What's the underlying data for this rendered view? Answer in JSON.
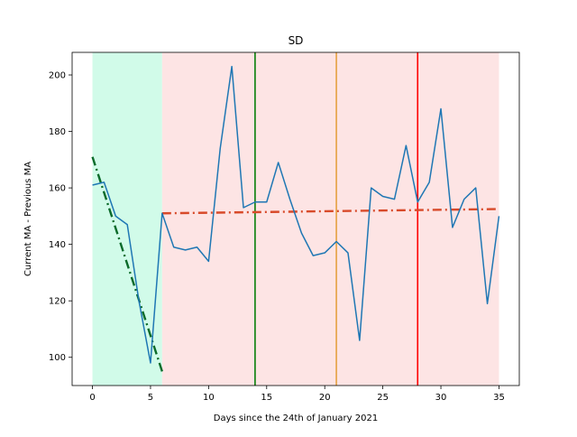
{
  "chart_data": {
    "type": "line",
    "title": "SD",
    "xlabel": "Days since the 24th of January 2021",
    "ylabel": "Current MA - Previous MA",
    "xlim": [
      -1.75,
      36.75
    ],
    "ylim": [
      90,
      208
    ],
    "xticks": [
      0,
      5,
      10,
      15,
      20,
      25,
      30,
      35
    ],
    "yticks": [
      100,
      120,
      140,
      160,
      180,
      200
    ],
    "grid": false,
    "colors": {
      "series": "#1f77b4",
      "trend_before": "#0b6b2a",
      "trend_after": "#d84a2a",
      "shade_before": "#d1fbe9",
      "shade_after": "#fde4e4",
      "vline_green": "#087f08",
      "vline_orange": "#e5a042",
      "vline_red": "#ff0000"
    },
    "shaded_regions": [
      {
        "x_start": 0,
        "x_end": 6,
        "color_key": "shade_before"
      },
      {
        "x_start": 6,
        "x_end": 35,
        "color_key": "shade_after"
      }
    ],
    "vertical_lines": [
      {
        "x": 14,
        "color_key": "vline_green"
      },
      {
        "x": 21,
        "color_key": "vline_orange"
      },
      {
        "x": 28,
        "color_key": "vline_red"
      }
    ],
    "series": [
      {
        "x": [
          0,
          1,
          2,
          3,
          4,
          5,
          6,
          7,
          8,
          9,
          10,
          11,
          12,
          13,
          14,
          15,
          16,
          17,
          18,
          19,
          20,
          21,
          22,
          23,
          24,
          25,
          26,
          27,
          28,
          29,
          30,
          31,
          32,
          33,
          34,
          35
        ],
        "values": [
          161,
          162,
          150,
          147,
          120,
          98,
          151,
          139,
          138,
          139,
          134,
          174,
          203,
          153,
          155,
          155,
          169,
          156,
          144,
          136,
          137,
          141,
          137,
          106,
          160,
          157,
          156,
          175,
          155,
          162,
          188,
          146,
          156,
          160,
          119,
          150
        ]
      }
    ],
    "trend_lines": [
      {
        "x": [
          0,
          6
        ],
        "y": [
          171,
          95
        ],
        "color_key": "trend_before",
        "style": "dash-dot"
      },
      {
        "x": [
          6,
          35
        ],
        "y": [
          151,
          152.5
        ],
        "color_key": "trend_after",
        "style": "dash-dot"
      }
    ]
  }
}
